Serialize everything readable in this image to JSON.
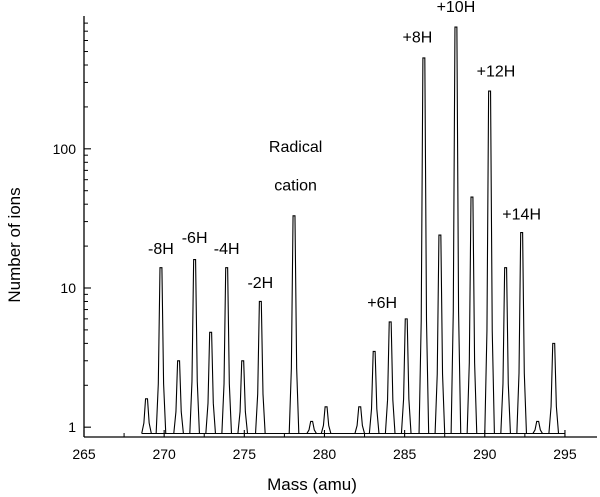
{
  "chart_data": {
    "type": "line",
    "title": "",
    "xlabel": "Mass (amu)",
    "ylabel": "Number of ions",
    "xlim": [
      265,
      297
    ],
    "ylim": [
      0.85,
      900
    ],
    "yscale": "log",
    "grid": false,
    "line_color": "#000000",
    "x_ticks": [
      265,
      270,
      275,
      280,
      285,
      290,
      295
    ],
    "x_tick_labels": [
      "265",
      "270",
      "275",
      "280",
      "285",
      "290",
      "295"
    ],
    "y_ticks": [
      1,
      10,
      100
    ],
    "y_tick_labels": [
      "1",
      "10",
      "100"
    ],
    "baseline_value": 0.9,
    "x_start": 268.6,
    "x_end": 295,
    "peaks": [
      {
        "x": 268.9,
        "y": 1.6
      },
      {
        "x": 269.8,
        "y": 14
      },
      {
        "x": 270.9,
        "y": 3
      },
      {
        "x": 271.9,
        "y": 16
      },
      {
        "x": 272.9,
        "y": 4.8
      },
      {
        "x": 273.9,
        "y": 14
      },
      {
        "x": 274.9,
        "y": 3
      },
      {
        "x": 276.0,
        "y": 8
      },
      {
        "x": 278.1,
        "y": 33
      },
      {
        "x": 279.2,
        "y": 1.1
      },
      {
        "x": 280.1,
        "y": 1.4
      },
      {
        "x": 282.2,
        "y": 1.4
      },
      {
        "x": 283.1,
        "y": 3.5
      },
      {
        "x": 284.1,
        "y": 5.7
      },
      {
        "x": 285.1,
        "y": 6
      },
      {
        "x": 286.2,
        "y": 450
      },
      {
        "x": 287.2,
        "y": 24
      },
      {
        "x": 288.2,
        "y": 750
      },
      {
        "x": 289.2,
        "y": 45
      },
      {
        "x": 290.3,
        "y": 260
      },
      {
        "x": 291.3,
        "y": 14
      },
      {
        "x": 292.3,
        "y": 25
      },
      {
        "x": 293.3,
        "y": 1.1
      },
      {
        "x": 294.3,
        "y": 4
      }
    ],
    "annotations": [
      {
        "text": "-8H",
        "x": 269.8,
        "y": 17.5
      },
      {
        "text": "-6H",
        "x": 271.9,
        "y": 21
      },
      {
        "text": "-4H",
        "x": 273.9,
        "y": 17.5
      },
      {
        "text": "-2H",
        "x": 276.0,
        "y": 10
      },
      {
        "text": "Radical",
        "x": 278.2,
        "y": 95
      },
      {
        "text": "cation",
        "x": 278.2,
        "y": 50
      },
      {
        "text": "+6H",
        "x": 283.6,
        "y": 7.2
      },
      {
        "text": "+8H",
        "x": 285.8,
        "y": 580
      },
      {
        "text": "+10H",
        "x": 288.2,
        "y": 960
      },
      {
        "text": "+12H",
        "x": 290.7,
        "y": 330
      },
      {
        "text": "+14H",
        "x": 292.3,
        "y": 31
      }
    ]
  }
}
